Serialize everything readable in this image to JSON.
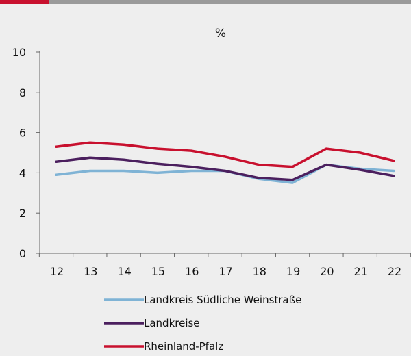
{
  "colors": {
    "accent": "#c8102e",
    "background": "#eeeeee",
    "axis": "#666666"
  },
  "chart_data": {
    "type": "line",
    "title": "%",
    "xlabel": "",
    "ylabel": "",
    "x": [
      "12",
      "13",
      "14",
      "15",
      "16",
      "17",
      "18",
      "19",
      "20",
      "21",
      "22"
    ],
    "ylim": [
      0,
      10
    ],
    "yticks": [
      0,
      2,
      4,
      6,
      8,
      10
    ],
    "grid": false,
    "legend_placement": "bottom",
    "series": [
      {
        "name": "Landkreis Südliche Weinstraße",
        "color": "#7fb3d5",
        "values": [
          3.9,
          4.1,
          4.1,
          4.0,
          4.1,
          4.1,
          3.7,
          3.5,
          4.4,
          4.2,
          4.1
        ]
      },
      {
        "name": "Landkreise",
        "color": "#4b1f5e",
        "values": [
          4.55,
          4.75,
          4.65,
          4.45,
          4.3,
          4.1,
          3.75,
          3.65,
          4.4,
          4.15,
          3.85
        ]
      },
      {
        "name": "Rheinland-Pfalz",
        "color": "#c8102e",
        "values": [
          5.3,
          5.5,
          5.4,
          5.2,
          5.1,
          4.8,
          4.4,
          4.3,
          5.2,
          5.0,
          4.6
        ]
      }
    ]
  }
}
